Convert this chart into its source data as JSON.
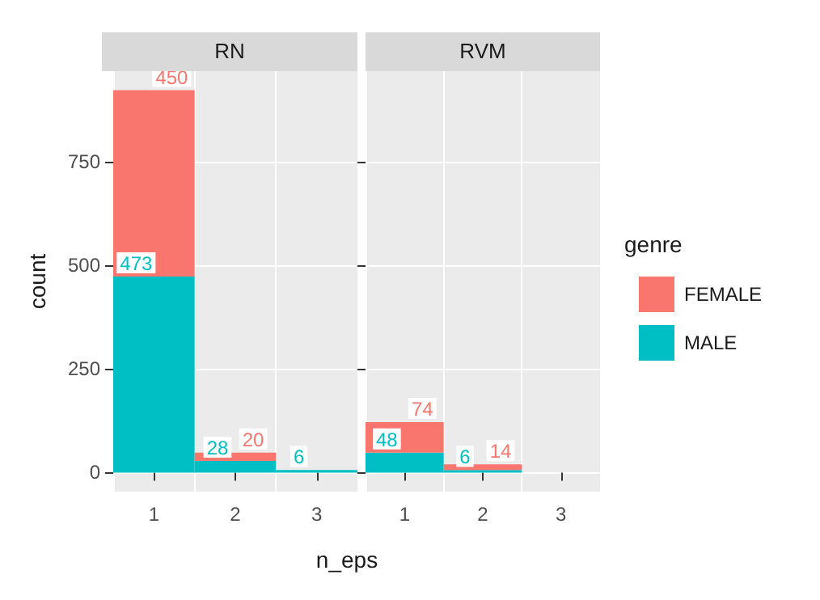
{
  "chart_data": [
    {
      "type": "bar",
      "title": "RN",
      "xlabel": "n_eps",
      "ylabel": "count",
      "categories": [
        "1",
        "2",
        "3"
      ],
      "stacked": true,
      "grid": true,
      "legend": "right",
      "series": [
        {
          "name": "MALE",
          "color": "#00bfc4",
          "values": [
            473,
            28,
            6
          ],
          "value_labels": [
            "473",
            "28",
            "6"
          ]
        },
        {
          "name": "FEMALE",
          "color": "#f8766d",
          "values": [
            450,
            20,
            0
          ],
          "value_labels": [
            "450",
            "20",
            null
          ]
        }
      ],
      "ylim": [
        -46,
        969
      ],
      "yticks": [
        0,
        250,
        500,
        750
      ]
    },
    {
      "type": "bar",
      "title": "RVM",
      "categories": [
        "1",
        "2",
        "3"
      ],
      "stacked": true,
      "grid": true,
      "legend": "right",
      "legend_title": "genre",
      "tick_labels": "x",
      "series": [
        {
          "name": "MALE",
          "color": "#00bfc4",
          "values": [
            48,
            6,
            0
          ],
          "value_labels": [
            "48",
            "6",
            null
          ]
        },
        {
          "name": "FEMALE",
          "color": "#f8766d",
          "values": [
            74,
            14,
            0
          ],
          "value_labels": [
            "74",
            "14",
            null
          ]
        }
      ],
      "ylim": [
        -46,
        969
      ],
      "yticks": [
        0,
        250,
        500,
        750
      ]
    }
  ]
}
